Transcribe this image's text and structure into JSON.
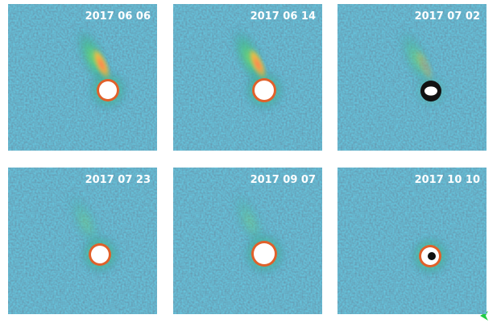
{
  "panels": [
    {
      "date": "2017 06 06"
    },
    {
      "date": "2017 06 14"
    },
    {
      "date": "2017 07 02"
    },
    {
      "date": "2017 07 23"
    },
    {
      "date": "2017 09 07"
    },
    {
      "date": "2017 10 10"
    }
  ]
}
